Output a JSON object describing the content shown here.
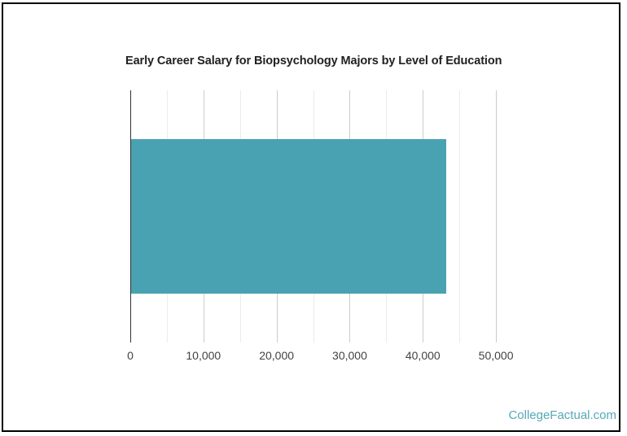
{
  "page": {
    "background": "#ffffff",
    "border_color": "#000000",
    "watermark": "CollegeFactual.com",
    "watermark_color": "#53a9b8"
  },
  "chart_data": {
    "type": "bar",
    "orientation": "horizontal",
    "title": "Early Career Salary for Biopsychology Majors by Level of Education",
    "series": [
      {
        "name": "Early Career Salary",
        "values": [
          43200
        ]
      }
    ],
    "categories": [
      ""
    ],
    "value_labels_shown": false,
    "xlabel": "",
    "ylabel": "",
    "xlim": [
      0,
      55000
    ],
    "x_major_ticks": [
      0,
      10000,
      20000,
      30000,
      40000,
      50000
    ],
    "x_major_tick_labels": [
      "0",
      "10,000",
      "20,000",
      "30,000",
      "40,000",
      "50,000"
    ],
    "x_minor_ticks": [
      5000,
      15000,
      25000,
      35000,
      45000
    ],
    "grid": true,
    "legend": "none",
    "colors": {
      "bar": "#49a2b1",
      "axis_line": "#333333",
      "major_grid": "#cbcbcb",
      "minor_grid": "#ececec",
      "tick_label": "#424242",
      "title": "#212121"
    }
  }
}
